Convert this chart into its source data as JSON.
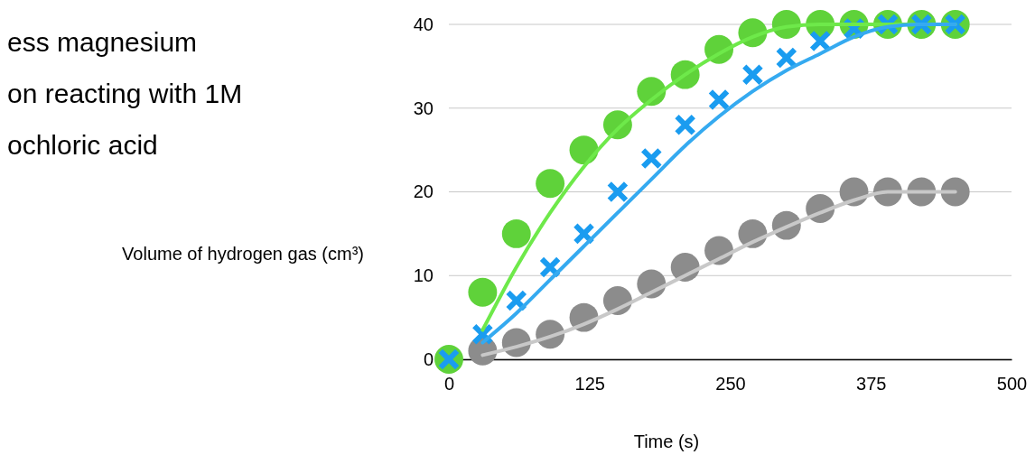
{
  "chart_data": {
    "type": "scatter",
    "title": "ess magnesium\non reacting with 1M\nochloric acid",
    "xlabel": "Time (s)",
    "ylabel": "Volume of hydrogen gas (cm³)",
    "x": [
      0,
      30,
      60,
      90,
      120,
      150,
      180,
      210,
      240,
      270,
      300,
      330,
      360,
      390,
      420,
      450
    ],
    "xlim": [
      0,
      500
    ],
    "xticks": [
      0,
      125,
      250,
      375,
      500
    ],
    "ylim": [
      0,
      40
    ],
    "yticks": [
      0,
      10,
      20,
      30,
      40
    ],
    "grid": "y",
    "series": [
      {
        "marker": "circle",
        "color": "#8c8c8c",
        "values": [
          null,
          1,
          2,
          3,
          5,
          7,
          9,
          11,
          13,
          15,
          16,
          18,
          20,
          20,
          20,
          20
        ]
      },
      {
        "marker": "circle",
        "color": "#5fd23a",
        "values": [
          0,
          8,
          15,
          21,
          25,
          28,
          32,
          34,
          37,
          39,
          40,
          40,
          40,
          40,
          40,
          40
        ]
      },
      {
        "marker": "cross",
        "color": "#1a9cf0",
        "values": [
          0,
          3,
          7,
          11,
          15,
          20,
          24,
          28,
          31,
          34,
          36,
          38,
          39.5,
          40,
          40,
          40
        ]
      },
      {
        "type": "line",
        "marker": "none",
        "color": "#c8c8c8",
        "x": [
          30,
          60,
          90,
          120,
          150,
          180,
          210,
          240,
          270,
          300,
          330,
          360,
          390,
          420,
          450
        ],
        "values": [
          0.5,
          1.5,
          2.7,
          4.2,
          6,
          8,
          10,
          12,
          14,
          15.8,
          17.5,
          19,
          20,
          20,
          20
        ]
      },
      {
        "type": "line",
        "marker": "none",
        "color": "#6ee94a",
        "x": [
          30,
          60,
          90,
          120,
          150,
          180,
          210,
          240,
          270,
          300,
          330,
          360,
          390,
          420,
          450
        ],
        "values": [
          3.5,
          11,
          17.5,
          23,
          27.5,
          31,
          34,
          36.5,
          38.5,
          39.7,
          40,
          40,
          40,
          40,
          40
        ]
      },
      {
        "type": "line",
        "marker": "none",
        "color": "#35aaf0",
        "x": [
          30,
          60,
          90,
          120,
          150,
          180,
          210,
          240,
          270,
          300,
          330,
          360,
          390,
          420,
          450
        ],
        "values": [
          2,
          5.5,
          9.5,
          13.5,
          17.5,
          21.5,
          25.5,
          29,
          32,
          34.5,
          36.5,
          38.5,
          39.7,
          40,
          40
        ]
      }
    ]
  }
}
